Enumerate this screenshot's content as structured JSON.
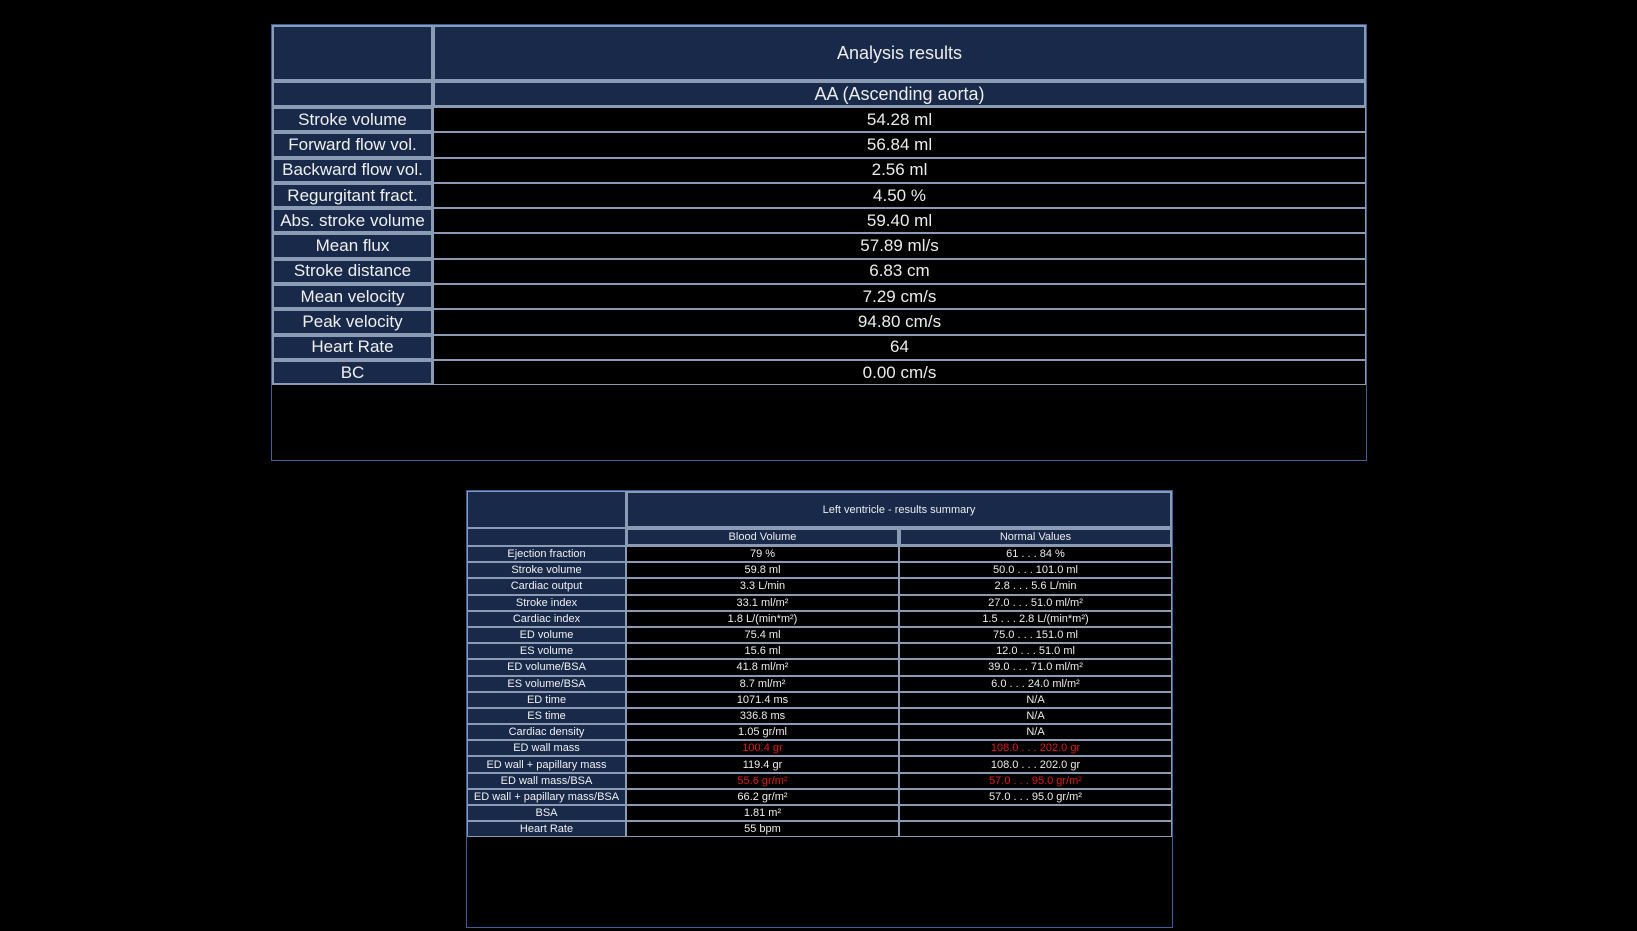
{
  "analysis": {
    "title": "Analysis results",
    "subtitle": "AA (Ascending aorta)",
    "rows": [
      {
        "label": "Stroke volume",
        "value": "54.28 ml"
      },
      {
        "label": "Forward flow vol.",
        "value": "56.84 ml"
      },
      {
        "label": "Backward flow vol.",
        "value": "2.56 ml"
      },
      {
        "label": "Regurgitant fract.",
        "value": "4.50 %"
      },
      {
        "label": "Abs. stroke volume",
        "value": "59.40 ml"
      },
      {
        "label": "Mean flux",
        "value": "57.89 ml/s"
      },
      {
        "label": "Stroke distance",
        "value": "6.83 cm"
      },
      {
        "label": "Mean velocity",
        "value": "7.29 cm/s"
      },
      {
        "label": "Peak velocity",
        "value": "94.80 cm/s"
      },
      {
        "label": "Heart Rate",
        "value": "64"
      },
      {
        "label": "BC",
        "value": "0.00 cm/s"
      }
    ]
  },
  "lv": {
    "title": "Left ventricle - results summary",
    "col_blood_volume": "Blood Volume",
    "col_normal_values": "Normal Values",
    "abnormal_color": "#e0191b",
    "rows": [
      {
        "label": "Ejection fraction",
        "value": "79 %",
        "normal": "61 . . .  84  %",
        "abnormal": false
      },
      {
        "label": "Stroke volume",
        "value": "59.8 ml",
        "normal": "50.0 . . . 101.0  ml",
        "abnormal": false
      },
      {
        "label": "Cardiac output",
        "value": "3.3 L/min",
        "normal": "2.8 . . . 5.6  L/min",
        "abnormal": false
      },
      {
        "label": "Stroke index",
        "value": "33.1 ml/m²",
        "normal": "27.0 . . . 51.0  ml/m²",
        "abnormal": false
      },
      {
        "label": "Cardiac index",
        "value": "1.8 L/(min*m²)",
        "normal": "1.5 . . . 2.8  L/(min*m²)",
        "abnormal": false
      },
      {
        "label": "ED volume",
        "value": "75.4 ml",
        "normal": "75.0 . . . 151.0  ml",
        "abnormal": false
      },
      {
        "label": "ES volume",
        "value": "15.6 ml",
        "normal": "12.0 . . . 51.0  ml",
        "abnormal": false
      },
      {
        "label": "ED volume/BSA",
        "value": "41.8 ml/m²",
        "normal": "39.0 . . . 71.0  ml/m²",
        "abnormal": false
      },
      {
        "label": "ES volume/BSA",
        "value": "8.7 ml/m²",
        "normal": "6.0 . . . 24.0  ml/m²",
        "abnormal": false
      },
      {
        "label": "ED time",
        "value": "1071.4 ms",
        "normal": "N/A",
        "abnormal": false
      },
      {
        "label": "ES time",
        "value": "336.8 ms",
        "normal": "N/A",
        "abnormal": false
      },
      {
        "label": "Cardiac density",
        "value": "1.05 gr/ml",
        "normal": "N/A",
        "abnormal": false
      },
      {
        "label": "ED wall mass",
        "value": "100.4 gr",
        "normal": "108.0 . . . 202.0  gr",
        "abnormal": true
      },
      {
        "label": "ED wall + papillary mass",
        "value": "119.4 gr",
        "normal": "108.0 . . . 202.0  gr",
        "abnormal": false
      },
      {
        "label": "ED wall mass/BSA",
        "value": "55.6 gr/m²",
        "normal": "57.0 . . . 95.0  gr/m²",
        "abnormal": true
      },
      {
        "label": "ED wall + papillary mass/BSA",
        "value": "66.2 gr/m²",
        "normal": "57.0 . . . 95.0  gr/m²",
        "abnormal": false
      },
      {
        "label": "BSA",
        "value": "1.81 m²",
        "normal": "",
        "abnormal": false
      },
      {
        "label": "Heart Rate",
        "value": "55 bpm",
        "normal": "",
        "abnormal": false
      }
    ]
  }
}
